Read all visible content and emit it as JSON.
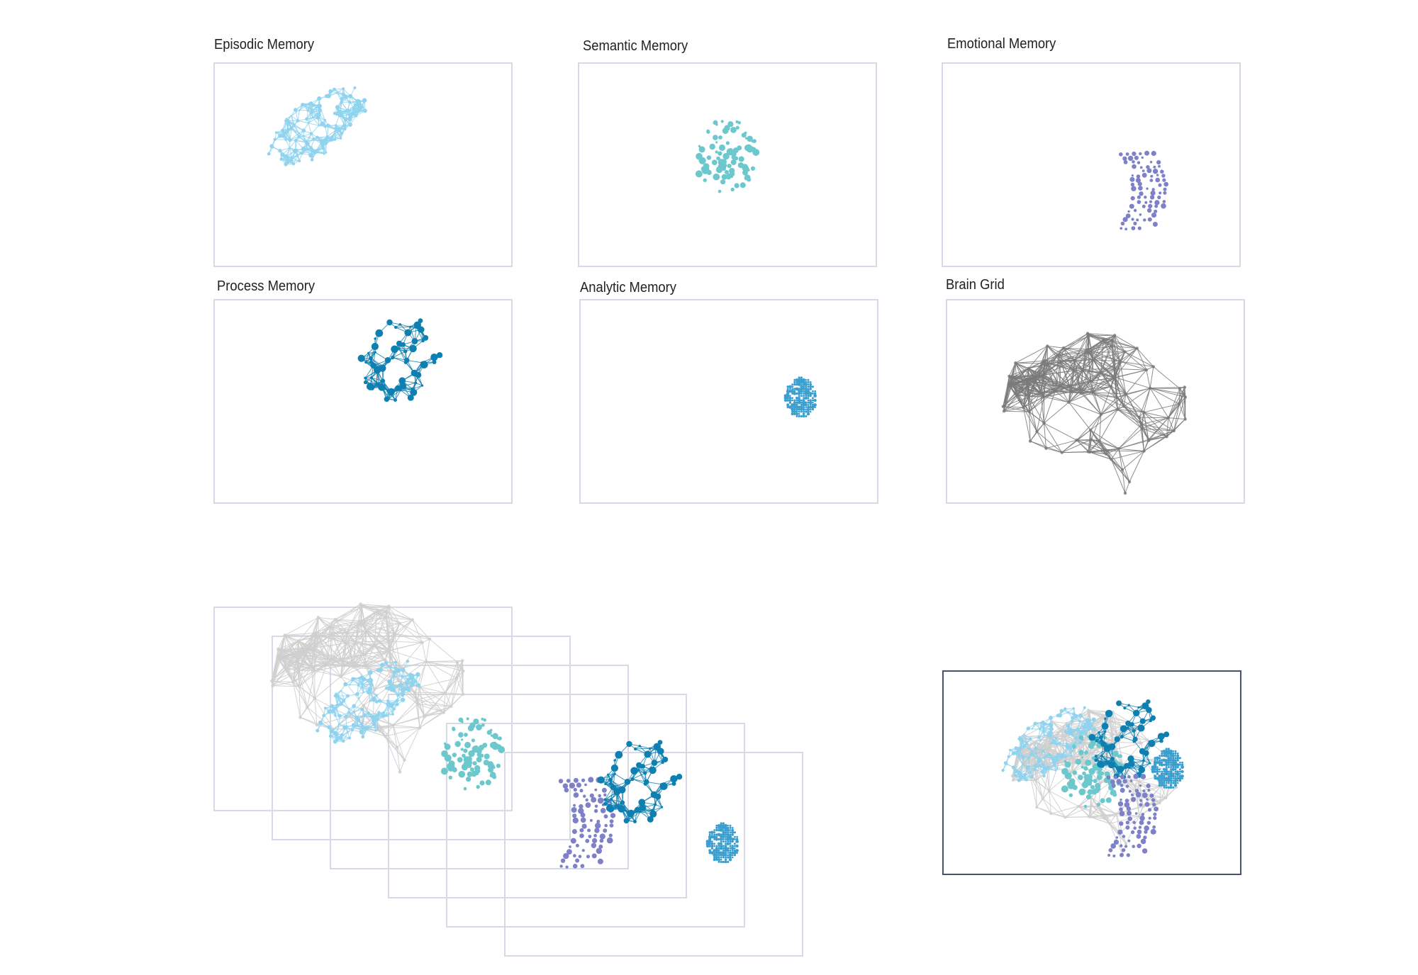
{
  "titles": {
    "episodic": "Episodic Memory",
    "semantic": "Semantic Memory",
    "emotional": "Emotional Memory",
    "process": "Process Memory",
    "analytic": "Analytic Memory",
    "brain": "Brain Grid"
  },
  "colors": {
    "episodic": "#8fd3ee",
    "semantic": "#6cc8cc",
    "emotional": "#7e80c8",
    "process": "#0d7fb0",
    "analytic": "#3a9fcf",
    "brain_grid": "#7a7a7a",
    "brain_grid_faint": "#cfcfcf",
    "panel_border": "#d6dae6",
    "final_border": "#45526e"
  },
  "icons": {
    "episodic": "dot-cluster-icon",
    "semantic": "dot-cluster-icon",
    "emotional": "dot-stripe-icon",
    "process": "node-network-icon",
    "analytic": "dot-grid-icon",
    "brain": "brain-mesh-icon"
  }
}
